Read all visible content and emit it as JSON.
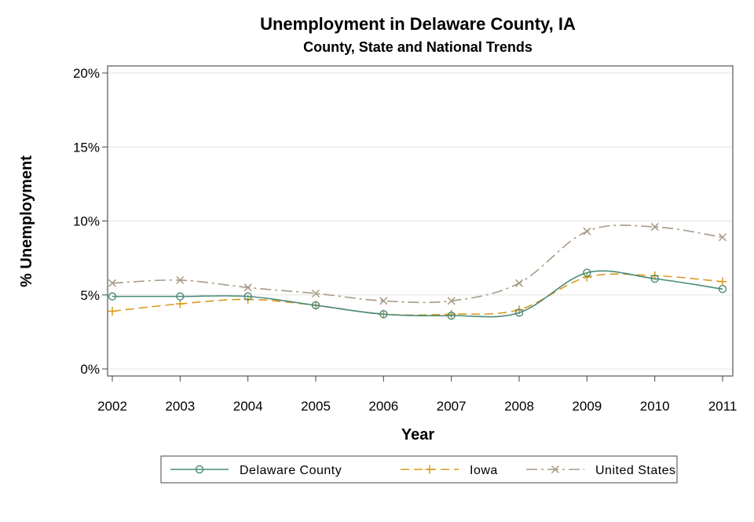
{
  "chart_data": {
    "type": "line",
    "title": "Unemployment in Delaware County, IA",
    "subtitle": "County, State and National Trends",
    "xlabel": "Year",
    "ylabel": "% Unemployment",
    "x": [
      "2002",
      "2003",
      "2004",
      "2005",
      "2006",
      "2007",
      "2008",
      "2009",
      "2010",
      "2011"
    ],
    "ylim": [
      0,
      20
    ],
    "yticks": [
      0,
      5,
      10,
      15,
      20
    ],
    "ytick_labels": [
      "0%",
      "5%",
      "10%",
      "15%",
      "20%"
    ],
    "grid": true,
    "legend_position": "bottom",
    "series": [
      {
        "name": "Delaware County",
        "color": "#4a8a78",
        "marker": "circle",
        "dash": "solid",
        "values": [
          4.9,
          4.9,
          4.9,
          4.3,
          3.7,
          3.6,
          3.8,
          6.5,
          6.1,
          5.4
        ]
      },
      {
        "name": "Iowa",
        "color": "#d79a1e",
        "marker": "plus",
        "dash": "dash",
        "values": [
          3.9,
          4.4,
          4.7,
          4.3,
          3.7,
          3.7,
          4.0,
          6.2,
          6.3,
          5.9
        ]
      },
      {
        "name": "United States",
        "color": "#a89a85",
        "marker": "x",
        "dash": "dashdot",
        "values": [
          5.8,
          6.0,
          5.5,
          5.1,
          4.6,
          4.6,
          5.8,
          9.3,
          9.6,
          8.9
        ]
      }
    ]
  }
}
